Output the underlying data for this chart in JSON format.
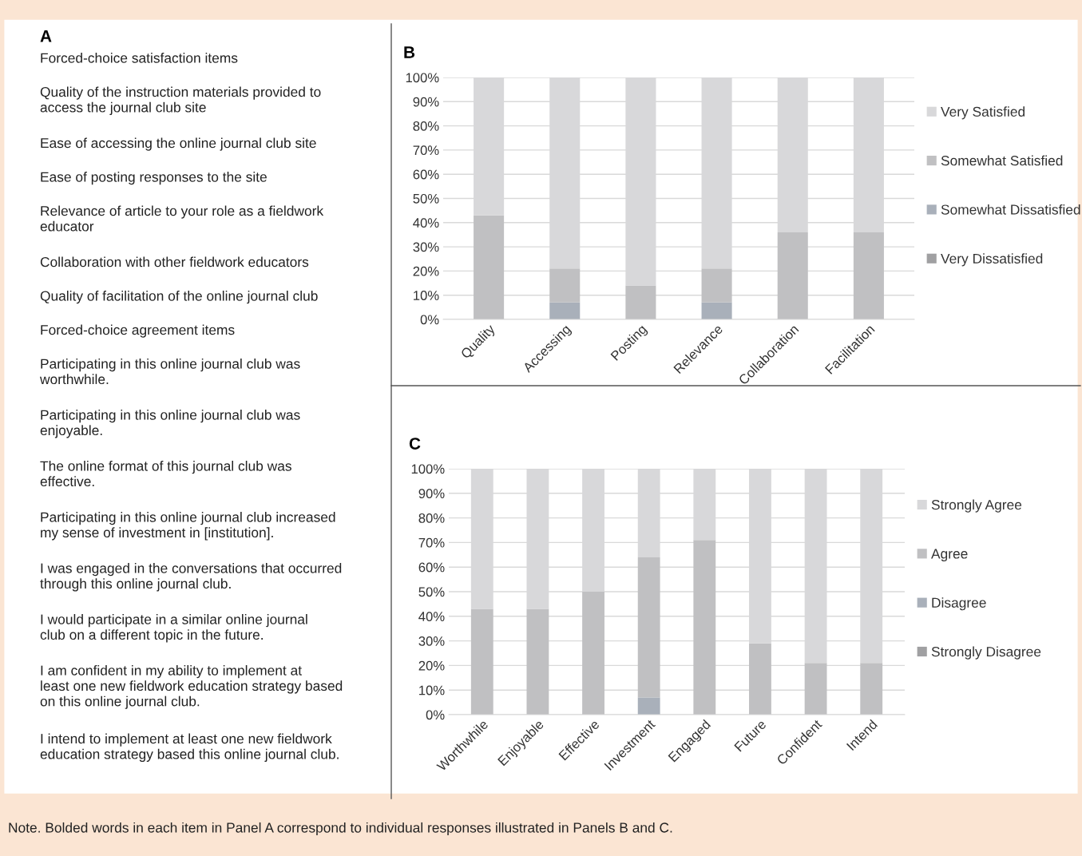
{
  "chart_data": [
    {
      "type": "other",
      "title": "A",
      "annotations": [
        "Forced-choice satisfaction items",
        "Quality of the instruction materials provided to\naccess the journal club site",
        "Ease of accessing the online journal club site",
        "Ease of posting responses to the site",
        "Relevance of article to your role as a fieldwork\neducator",
        "Collaboration with other fieldwork educators",
        "Quality of facilitation of the online journal club",
        "Forced-choice agreement items",
        "Participating in this online journal club was\nworthwhile.",
        "Participating in this online journal club was\nenjoyable.",
        "The online format of this journal club was\neffective.",
        "Participating in this online journal club increased\nmy sense of investment in [institution].",
        "I was engaged in the conversations that occurred\nthrough this online journal club.",
        "I would participate in a similar online journal\nclub on a different topic in the future.",
        "I am confident in my ability to implement at\nleast one new fieldwork education strategy based\non this online journal club.",
        "I intend to implement at least one new fieldwork\neducation strategy based this online journal club."
      ]
    },
    {
      "type": "bar",
      "title": "B",
      "stacked": true,
      "legend": "right",
      "grid": "y",
      "categories": [
        "Quality",
        "Accessing",
        "Posting",
        "Relevance",
        "Collaboration",
        "Facilitation"
      ],
      "ylim": [
        0,
        100
      ],
      "yticks": [
        {
          "value": 0,
          "label": "0%"
        },
        {
          "value": 10,
          "label": "10%"
        },
        {
          "value": 20,
          "label": "20%"
        },
        {
          "value": 30,
          "label": "30%"
        },
        {
          "value": 40,
          "label": "40%"
        },
        {
          "value": 50,
          "label": "50%"
        },
        {
          "value": 60,
          "label": "60%"
        },
        {
          "value": 70,
          "label": "70%"
        },
        {
          "value": 80,
          "label": "80%"
        },
        {
          "value": 90,
          "label": "90%"
        },
        {
          "value": 100,
          "label": "100%"
        }
      ],
      "series": [
        {
          "name": "Very Dissatisfied",
          "color": "#a0a0a2",
          "values": [
            0,
            0,
            0,
            0,
            0,
            0
          ]
        },
        {
          "name": "Somewhat Dissatisfied",
          "color": "#a9b0ba",
          "values": [
            0,
            7,
            0,
            7,
            0,
            0
          ]
        },
        {
          "name": "Somewhat Satisfied",
          "color": "#c0c0c2",
          "values": [
            43,
            14,
            14,
            14,
            36,
            36
          ]
        },
        {
          "name": "Very Satisfied",
          "color": "#d8d8da",
          "values": [
            57,
            79,
            86,
            79,
            64,
            64
          ]
        }
      ]
    },
    {
      "type": "bar",
      "title": "C",
      "stacked": true,
      "legend": "right",
      "grid": "y",
      "categories": [
        "Worthwhile",
        "Enjoyable",
        "Effective",
        "Investment",
        "Engaged",
        "Future",
        "Confident",
        "Intend"
      ],
      "ylim": [
        0,
        100
      ],
      "yticks": [
        {
          "value": 0,
          "label": "0%"
        },
        {
          "value": 10,
          "label": "10%"
        },
        {
          "value": 20,
          "label": "20%"
        },
        {
          "value": 30,
          "label": "30%"
        },
        {
          "value": 40,
          "label": "40%"
        },
        {
          "value": 50,
          "label": "50%"
        },
        {
          "value": 60,
          "label": "60%"
        },
        {
          "value": 70,
          "label": "70%"
        },
        {
          "value": 80,
          "label": "80%"
        },
        {
          "value": 90,
          "label": "90%"
        },
        {
          "value": 100,
          "label": "100%"
        }
      ],
      "series": [
        {
          "name": "Strongly Disagree",
          "color": "#a0a0a2",
          "values": [
            0,
            0,
            0,
            0,
            0,
            0,
            0,
            0
          ]
        },
        {
          "name": "Disagree",
          "color": "#a9b0ba",
          "values": [
            0,
            0,
            0,
            7,
            0,
            0,
            0,
            0
          ]
        },
        {
          "name": "Agree",
          "color": "#c0c0c2",
          "values": [
            43,
            43,
            50,
            57,
            71,
            29,
            21,
            21
          ]
        },
        {
          "name": "Strongly Agree",
          "color": "#d8d8da",
          "values": [
            57,
            57,
            50,
            36,
            29,
            71,
            79,
            79
          ]
        }
      ]
    },
    {
      "type": "other",
      "annotations": [
        "Note. Bolded words in each item in Panel A correspond to individual responses illustrated in Panels B and C."
      ]
    }
  ]
}
